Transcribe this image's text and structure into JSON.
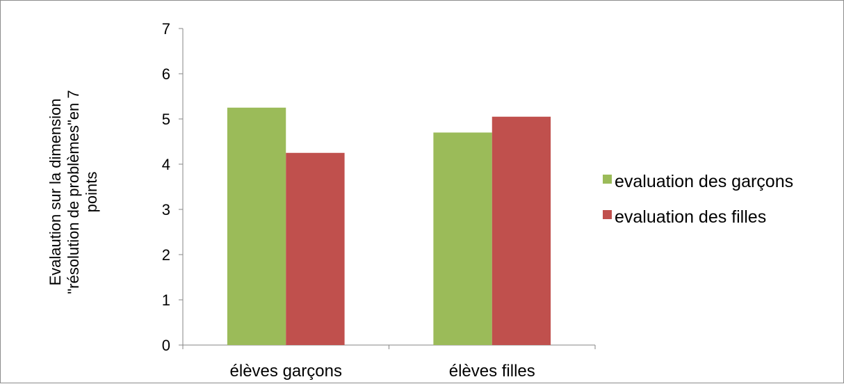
{
  "chart_data": {
    "type": "bar",
    "title": "",
    "xlabel": "",
    "ylabel_lines": [
      "Evalaution sur la dimension",
      "\"résolution de problèmes\"en 7",
      "points"
    ],
    "categories": [
      "élèves garçons",
      "élèves filles"
    ],
    "series": [
      {
        "name": "evaluation des garçons",
        "values": [
          5.25,
          4.7
        ],
        "color": "#9bbb59"
      },
      {
        "name": "evaluation des filles",
        "values": [
          4.25,
          5.05
        ],
        "color": "#c0504d"
      }
    ],
    "ylim": [
      0,
      7
    ],
    "yticks": [
      "0",
      "1",
      "2",
      "3",
      "4",
      "5",
      "6",
      "7"
    ],
    "grid": false,
    "legend_position": "right"
  }
}
